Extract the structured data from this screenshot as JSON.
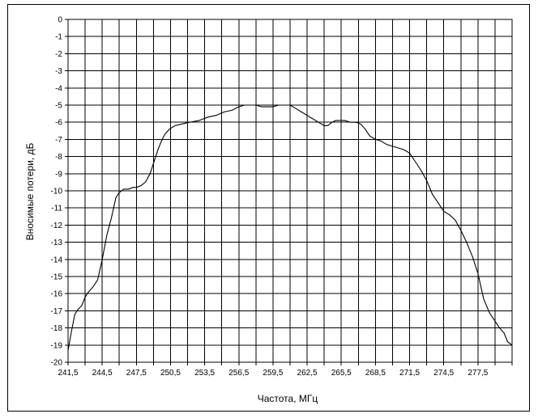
{
  "chart_data": {
    "type": "line",
    "xlabel": "Частота, МГц",
    "ylabel": "Вносимые потери, дБ",
    "xlim": [
      241.5,
      280.5
    ],
    "ylim": [
      -20,
      0
    ],
    "grid": true,
    "x_ticks": [
      "241,5",
      "244,5",
      "247,5",
      "250,5",
      "253,5",
      "256,5",
      "259,5",
      "262,5",
      "265,5",
      "268,5",
      "271,5",
      "274,5",
      "277,5"
    ],
    "y_ticks": [
      "0",
      "-1",
      "-2",
      "-3",
      "-4",
      "-5",
      "-6",
      "-7",
      "-8",
      "-9",
      "-10",
      "-11",
      "-12",
      "-13",
      "-14",
      "-15",
      "-16",
      "-17",
      "-18",
      "-19",
      "-20"
    ],
    "series": [
      {
        "x": [
          241.5,
          241.8,
          242.1,
          242.4,
          242.7,
          243.0,
          243.3,
          243.7,
          244.1,
          244.5,
          244.9,
          245.3,
          245.7,
          246.0,
          246.4,
          246.8,
          247.2,
          247.5,
          247.9,
          248.3,
          248.7,
          249.1,
          249.4,
          249.7,
          250.0,
          250.4,
          250.9,
          251.5,
          252.2,
          253.0,
          253.8,
          254.5,
          255.2,
          255.9,
          256.5,
          257.0,
          257.5,
          258.0,
          258.5,
          259.0,
          259.5,
          260.0,
          260.5,
          261.0,
          261.5,
          262.0,
          262.5,
          263.0,
          263.5,
          264.0,
          264.3,
          264.7,
          265.0,
          265.4,
          265.8,
          266.3,
          266.8,
          267.2,
          267.6,
          268.0,
          268.5,
          269.0,
          269.5,
          270.0,
          270.5,
          271.0,
          271.5,
          272.0,
          272.5,
          273.0,
          273.5,
          274.0,
          274.5,
          275.0,
          275.5,
          276.0,
          276.5,
          277.0,
          277.5,
          278.0,
          278.5,
          279.0,
          279.4,
          279.8,
          280.1,
          280.5
        ],
        "y": [
          -19.3,
          -18.2,
          -17.2,
          -16.9,
          -16.7,
          -16.2,
          -15.9,
          -15.6,
          -15.2,
          -14.0,
          -12.6,
          -11.6,
          -10.4,
          -10.1,
          -9.9,
          -9.9,
          -9.8,
          -9.8,
          -9.7,
          -9.5,
          -9.0,
          -8.2,
          -7.6,
          -7.1,
          -6.7,
          -6.4,
          -6.2,
          -6.1,
          -6.0,
          -5.9,
          -5.7,
          -5.6,
          -5.4,
          -5.3,
          -5.1,
          -5.0,
          -5.0,
          -5.0,
          -5.1,
          -5.1,
          -5.1,
          -5.0,
          -5.0,
          -5.0,
          -5.2,
          -5.4,
          -5.6,
          -5.8,
          -6.0,
          -6.2,
          -6.2,
          -6.0,
          -5.9,
          -5.9,
          -5.9,
          -6.0,
          -6.0,
          -6.1,
          -6.4,
          -6.8,
          -7.0,
          -7.1,
          -7.3,
          -7.4,
          -7.5,
          -7.6,
          -7.8,
          -8.3,
          -8.8,
          -9.4,
          -10.2,
          -10.7,
          -11.2,
          -11.4,
          -11.7,
          -12.3,
          -13.0,
          -13.8,
          -14.8,
          -16.3,
          -17.1,
          -17.6,
          -18.0,
          -18.3,
          -18.8,
          -19.0
        ]
      }
    ]
  }
}
